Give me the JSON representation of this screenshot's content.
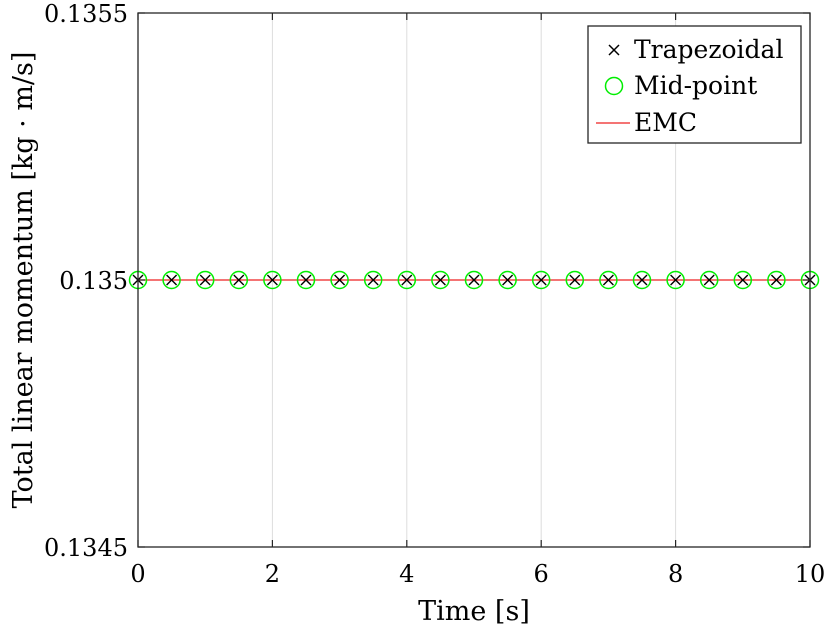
{
  "chart_data": {
    "type": "scatter",
    "title": "",
    "xlabel": "Time [s]",
    "ylabel": "Total linear momentum [kg · m/s]",
    "xlim": [
      0,
      10
    ],
    "ylim": [
      0.1345,
      0.1355
    ],
    "xticks": [
      0,
      2,
      4,
      6,
      8,
      10
    ],
    "xtick_labels": [
      "0",
      "2",
      "4",
      "6",
      "8",
      "10"
    ],
    "yticks": [
      0.1345,
      0.135,
      0.1355
    ],
    "ytick_labels": [
      "0.1345",
      "0.135",
      "0.1355"
    ],
    "grid": "vertical",
    "legend_position": "top-right",
    "x": [
      0,
      0.5,
      1,
      1.5,
      2,
      2.5,
      3,
      3.5,
      4,
      4.5,
      5,
      5.5,
      6,
      6.5,
      7,
      7.5,
      8,
      8.5,
      9,
      9.5,
      10
    ],
    "series": [
      {
        "name": "Trapezoidal",
        "marker": "x",
        "color": "#000000",
        "values": [
          0.135,
          0.135,
          0.135,
          0.135,
          0.135,
          0.135,
          0.135,
          0.135,
          0.135,
          0.135,
          0.135,
          0.135,
          0.135,
          0.135,
          0.135,
          0.135,
          0.135,
          0.135,
          0.135,
          0.135,
          0.135
        ]
      },
      {
        "name": "Mid-point",
        "marker": "circle",
        "color": "#00ee00",
        "values": [
          0.135,
          0.135,
          0.135,
          0.135,
          0.135,
          0.135,
          0.135,
          0.135,
          0.135,
          0.135,
          0.135,
          0.135,
          0.135,
          0.135,
          0.135,
          0.135,
          0.135,
          0.135,
          0.135,
          0.135,
          0.135
        ]
      },
      {
        "name": "EMC",
        "marker": "line",
        "color": "#ee2222",
        "x": [
          0,
          10
        ],
        "values": [
          0.135,
          0.135
        ]
      }
    ]
  }
}
